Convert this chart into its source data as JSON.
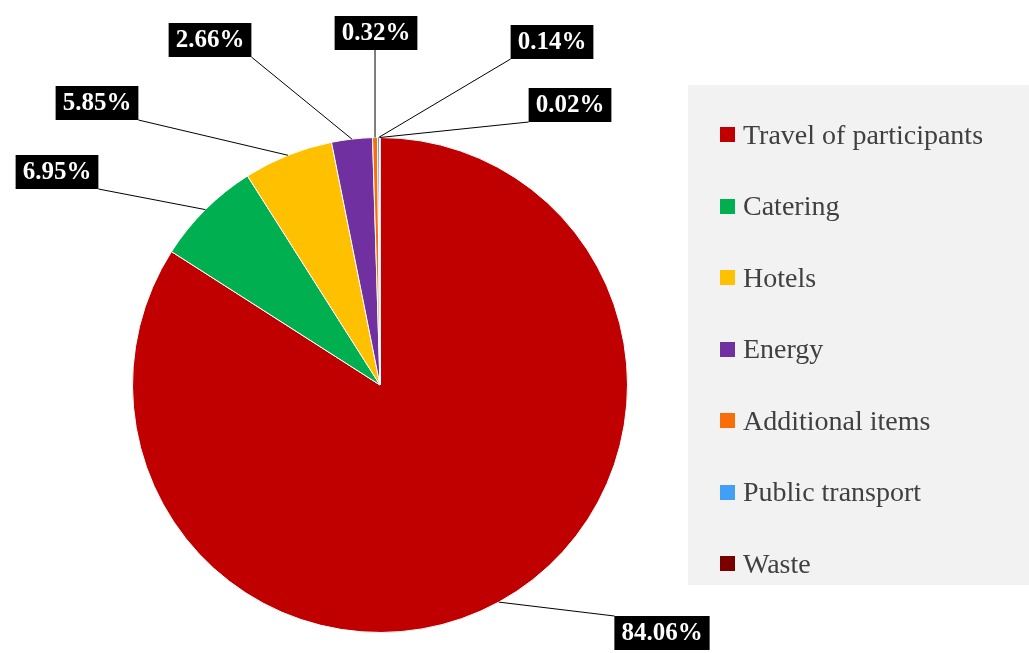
{
  "chart_data": {
    "type": "pie",
    "categories": [
      "Travel of participants",
      "Catering",
      "Hotels",
      "Energy",
      "Additional items",
      "Public transport",
      "Waste"
    ],
    "values": [
      84.06,
      6.95,
      5.85,
      2.66,
      0.32,
      0.14,
      0.02
    ],
    "colors": [
      "#c00000",
      "#00b050",
      "#ffc000",
      "#7030a0",
      "#fa6e0a",
      "#41a0f5",
      "#7a0000"
    ],
    "value_labels": [
      "84.06%",
      "6.95%",
      "5.85%",
      "2.66%",
      "0.32%",
      "0.14%",
      "0.02%"
    ],
    "legend": "right"
  }
}
